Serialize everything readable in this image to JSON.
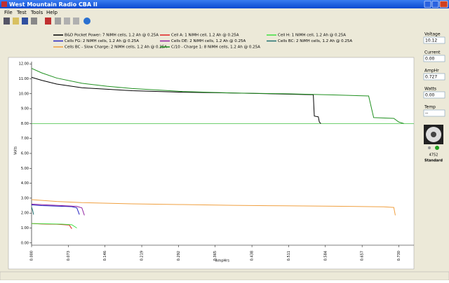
{
  "window": {
    "title": "West Mountain Radio CBA II",
    "menu": [
      "File",
      "Test",
      "Tools",
      "Help"
    ]
  },
  "panel": {
    "fields": [
      {
        "label": "Voltage",
        "value": "10.12"
      },
      {
        "label": "Current",
        "value": "0.00"
      },
      {
        "label": "AmpHr",
        "value": "0.727"
      },
      {
        "label": "Watts",
        "value": "0.00"
      },
      {
        "label": "Temp",
        "value": "--"
      }
    ],
    "serial": "4752",
    "mode": "Standard"
  },
  "chart_data": {
    "type": "line",
    "x_label": "AmpHrs",
    "y_label": "Volts",
    "xlim": [
      0,
      0.76
    ],
    "ylim": [
      -0.15,
      12.15
    ],
    "xticks": [
      {
        "value": 0,
        "label": "0.000"
      },
      {
        "value": 0.073,
        "label": "0.073"
      },
      {
        "value": 0.146,
        "label": "0.146"
      },
      {
        "value": 0.219,
        "label": "0.219"
      },
      {
        "value": 0.292,
        "label": "0.292"
      },
      {
        "value": 0.365,
        "label": "0.365"
      },
      {
        "value": 0.438,
        "label": "0.438"
      },
      {
        "value": 0.511,
        "label": "0.511"
      },
      {
        "value": 0.584,
        "label": "0.584"
      },
      {
        "value": 0.657,
        "label": "0.657"
      },
      {
        "value": 0.73,
        "label": "0.730"
      }
    ],
    "yticks": [
      {
        "value": 0,
        "label": "0.00"
      },
      {
        "value": 1,
        "label": "1.00"
      },
      {
        "value": 2,
        "label": "2.00"
      },
      {
        "value": 3,
        "label": "3.00"
      },
      {
        "value": 4,
        "label": "4.00"
      },
      {
        "value": 5,
        "label": "5.00"
      },
      {
        "value": 6,
        "label": "6.00"
      },
      {
        "value": 7,
        "label": "7.00"
      },
      {
        "value": 8,
        "label": "8.00"
      },
      {
        "value": 9,
        "label": "9.00"
      },
      {
        "value": 10,
        "label": "10.00"
      },
      {
        "value": 11,
        "label": "11.00"
      },
      {
        "value": 12,
        "label": "12.00"
      }
    ],
    "cutoff": 8,
    "cutoff_color": "#40c040",
    "series": [
      {
        "name": "B&D Pocket Power: 7 NiMH cells, 1.2 Ah @ 0.25A",
        "color": "#000000",
        "x": [
          0,
          0.02,
          0.05,
          0.1,
          0.15,
          0.2,
          0.3,
          0.4,
          0.5,
          0.56,
          0.562,
          0.57,
          0.572,
          0.575
        ],
        "values": [
          11.1,
          10.9,
          10.65,
          10.4,
          10.3,
          10.2,
          10.1,
          10.05,
          9.98,
          9.93,
          8.5,
          8.45,
          8.1,
          8.0
        ]
      },
      {
        "name": "Cell A: 1 NiMH cell, 1.2 Ah @ 0.25A",
        "color": "#e02020",
        "x": [
          0,
          0.02,
          0.05,
          0.075,
          0.08
        ],
        "values": [
          1.3,
          1.27,
          1.25,
          1.2,
          0.95
        ]
      },
      {
        "name": "Cell H: 1 NiMH cell, 1.2 Ah @ 0.25A",
        "color": "#40e040",
        "x": [
          0,
          0.03,
          0.06,
          0.08,
          0.09
        ],
        "values": [
          1.3,
          1.28,
          1.26,
          1.22,
          1.0
        ]
      },
      {
        "name": "Cells FG: 2 NiMH cells, 1.2 Ah @ 0.25A",
        "color": "#2020c0",
        "x": [
          0,
          0.02,
          0.05,
          0.08,
          0.09,
          0.095
        ],
        "values": [
          2.55,
          2.5,
          2.47,
          2.43,
          2.35,
          1.9
        ]
      },
      {
        "name": "Cells DE: 2 NiMH cells, 1.2 Ah @ 0.25A",
        "color": "#9020a0",
        "x": [
          0,
          0.03,
          0.06,
          0.09,
          0.1,
          0.105
        ],
        "values": [
          2.6,
          2.55,
          2.5,
          2.45,
          2.35,
          1.85
        ]
      },
      {
        "name": "Cells BC: 2 NiMH cells, 1.2 Ah @ 0.25A",
        "color": "#207070",
        "x": [
          0,
          0.002,
          0.004
        ],
        "values": [
          2.4,
          2.2,
          1.9
        ]
      },
      {
        "name": "Cells BC - Slow Charge: 2 NiMH cells, 1.2 Ah @ 0.25A",
        "color": "#f0a040",
        "x": [
          0,
          0.05,
          0.1,
          0.2,
          0.3,
          0.4,
          0.5,
          0.6,
          0.7,
          0.72,
          0.723
        ],
        "values": [
          2.9,
          2.78,
          2.7,
          2.62,
          2.57,
          2.52,
          2.49,
          2.46,
          2.42,
          2.38,
          1.85
        ]
      },
      {
        "name": "C/10 - Charge 1: 8 NiMH cells, 1.2 Ah @ 0.25A",
        "color": "#209020",
        "x": [
          0,
          0.02,
          0.05,
          0.1,
          0.15,
          0.2,
          0.3,
          0.4,
          0.5,
          0.6,
          0.67,
          0.68,
          0.72,
          0.73,
          0.74
        ],
        "values": [
          11.7,
          11.4,
          11.05,
          10.7,
          10.5,
          10.35,
          10.15,
          10.05,
          10.0,
          9.92,
          9.85,
          8.4,
          8.35,
          8.1,
          8.0
        ]
      }
    ]
  }
}
